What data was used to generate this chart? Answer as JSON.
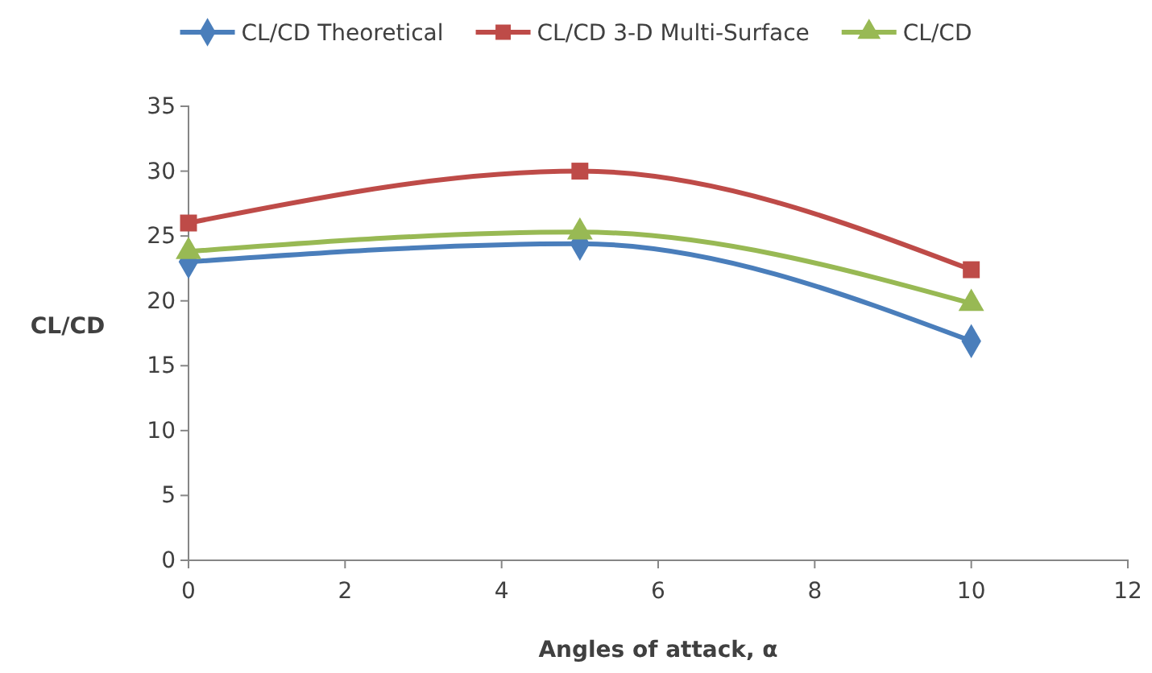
{
  "chart_data": {
    "type": "line",
    "xlabel": "Angles of attack, α",
    "ylabel": "CL/CD",
    "x": [
      0,
      5,
      10
    ],
    "series": [
      {
        "name": "CL/CD Theoretical",
        "color": "#4a7ebb",
        "marker": "diamond",
        "values": [
          23,
          24.4,
          16.9
        ]
      },
      {
        "name": "CL/CD 3-D Multi-Surface",
        "color": "#be4b48",
        "marker": "square",
        "values": [
          26,
          30,
          22.4
        ]
      },
      {
        "name": "CL/CD",
        "color": "#98b954",
        "marker": "triangle",
        "values": [
          23.8,
          25.3,
          19.8
        ]
      }
    ],
    "xlim": [
      0,
      12
    ],
    "xticks": [
      0,
      2,
      4,
      6,
      8,
      10,
      12
    ],
    "ylim": [
      0,
      35
    ],
    "yticks": [
      0,
      5,
      10,
      15,
      20,
      25,
      30,
      35
    ],
    "grid": false,
    "legend": "top"
  }
}
